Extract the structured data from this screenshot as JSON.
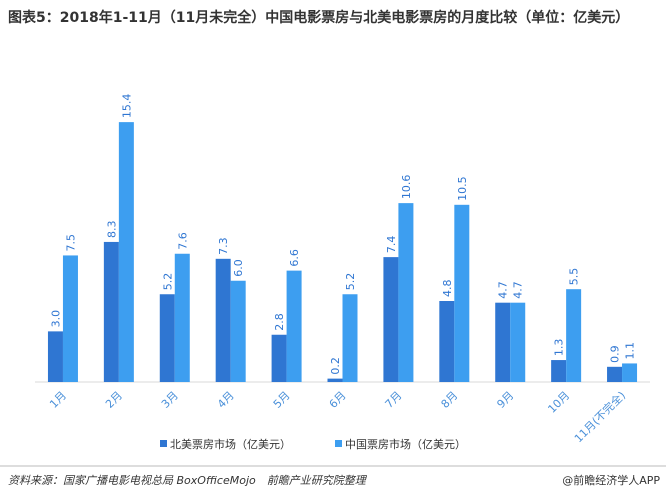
{
  "chart_data": {
    "type": "bar",
    "title": "图表5：2018年1-11月（11月未完全）中国电影票房与北美电影票房的月度比较（单位：亿美元）",
    "categories": [
      "1月",
      "2月",
      "3月",
      "4月",
      "5月",
      "6月",
      "7月",
      "8月",
      "9月",
      "10月",
      "11月(不完全)"
    ],
    "series": [
      {
        "name": "北美票房市场（亿美元）",
        "color": "#2f76d2",
        "values": [
          3.0,
          8.3,
          5.2,
          7.3,
          2.8,
          0.2,
          7.4,
          4.8,
          4.7,
          1.3,
          0.9
        ],
        "value_labels": [
          "3.0",
          "8.3",
          "5.2",
          "7.3",
          "2.8",
          "0.2",
          "7.4",
          "4.8",
          "4.7",
          "1.3",
          "0.9"
        ]
      },
      {
        "name": "中国票房市场（亿美元）",
        "color": "#3d9ef0",
        "values": [
          7.5,
          15.4,
          7.6,
          6.0,
          6.6,
          5.2,
          10.6,
          10.5,
          4.7,
          5.5,
          1.1
        ],
        "value_labels": [
          "7.5",
          "15.4",
          "7.6",
          "6.0",
          "6.6",
          "5.2",
          "10.6",
          "10.5",
          "4.7",
          "5.5",
          "1.1"
        ]
      }
    ],
    "ylim": [
      0,
      16
    ],
    "source": "资料来源：国家广播电影电视总局 BoxOfficeMojo　前瞻产业研究院整理",
    "credit": "@前瞻经济学人APP"
  }
}
